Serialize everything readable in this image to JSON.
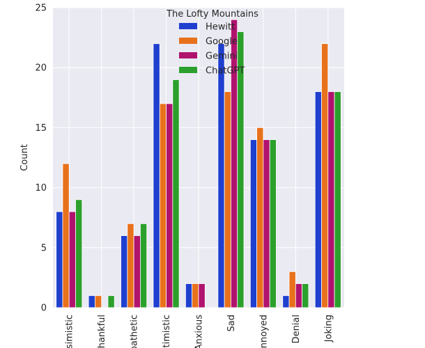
{
  "chart_data": {
    "type": "bar",
    "categories": [
      "Pessimistic",
      "Thankful",
      "Apathetic",
      "Optimistic",
      "Anxious",
      "Sad",
      "Annoyed",
      "Denial",
      "Joking"
    ],
    "series": [
      {
        "name": "Hewitt",
        "color": "#1f3fcf",
        "values": [
          8,
          1,
          6,
          22,
          2,
          22,
          14,
          1,
          18
        ]
      },
      {
        "name": "Google",
        "color": "#e8711c",
        "values": [
          12,
          1,
          7,
          17,
          2,
          18,
          15,
          3,
          22
        ]
      },
      {
        "name": "Gemini",
        "color": "#b0136e",
        "values": [
          8,
          0,
          6,
          17,
          2,
          24,
          14,
          2,
          18
        ]
      },
      {
        "name": "ChatGPT",
        "color": "#2ca02c",
        "values": [
          9,
          1,
          7,
          19,
          0,
          23,
          14,
          2,
          18
        ]
      }
    ],
    "title": "",
    "xlabel": "",
    "ylabel": "Count",
    "ylim": [
      0,
      25
    ],
    "yticks": [
      0,
      5,
      10,
      15,
      20,
      25
    ],
    "grid": true,
    "legend": {
      "title": "The Lofty Mountains",
      "placement": "top-center"
    }
  }
}
